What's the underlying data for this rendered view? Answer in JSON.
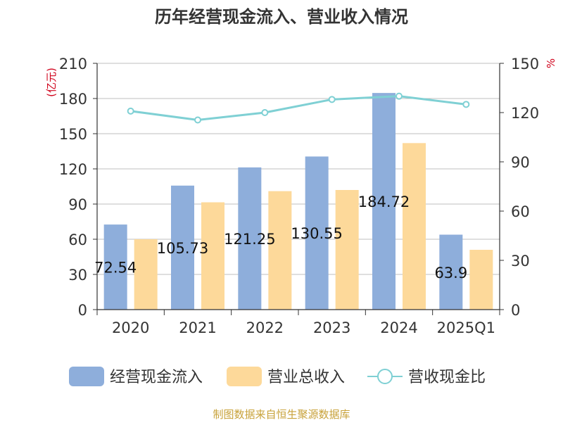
{
  "chart_data": {
    "type": "bar",
    "title": "历年经营现金流入、营业收入情况",
    "categories": [
      "2020",
      "2021",
      "2022",
      "2023",
      "2024",
      "2025Q1"
    ],
    "series": [
      {
        "name": "经营现金流入",
        "kind": "bar",
        "axis": "left",
        "color": "#8eaedb",
        "values": [
          72.54,
          105.73,
          121.25,
          130.55,
          184.72,
          63.9
        ],
        "data_labels": [
          "72.54",
          "105.73",
          "121.25",
          "130.55",
          "184.72",
          "63.9"
        ]
      },
      {
        "name": "营业总收入",
        "kind": "bar",
        "axis": "left",
        "color": "#fdd99a",
        "values": [
          60,
          91.5,
          101,
          102,
          142,
          51
        ]
      },
      {
        "name": "营收现金比",
        "kind": "line",
        "axis": "right",
        "color": "#7fd0d4",
        "values": [
          120.9,
          115.5,
          120,
          128,
          130,
          125
        ]
      }
    ],
    "y_left": {
      "label": "(亿元)",
      "ticks": [
        "0",
        "30",
        "60",
        "90",
        "120",
        "150",
        "180",
        "210"
      ],
      "min": 0,
      "max": 210
    },
    "y_right": {
      "label": "%",
      "ticks": [
        "0",
        "30",
        "60",
        "90",
        "120",
        "150"
      ],
      "min": 0,
      "max": 150
    },
    "grid": true,
    "legend_position": "bottom"
  },
  "footer": {
    "source": "制图数据来自恒生聚源数据库"
  },
  "colors": {
    "title": "#333333",
    "axis_label": "#d0021b",
    "grid": "#bfbfbf",
    "axis": "#333333",
    "source": "#c8a23a"
  }
}
